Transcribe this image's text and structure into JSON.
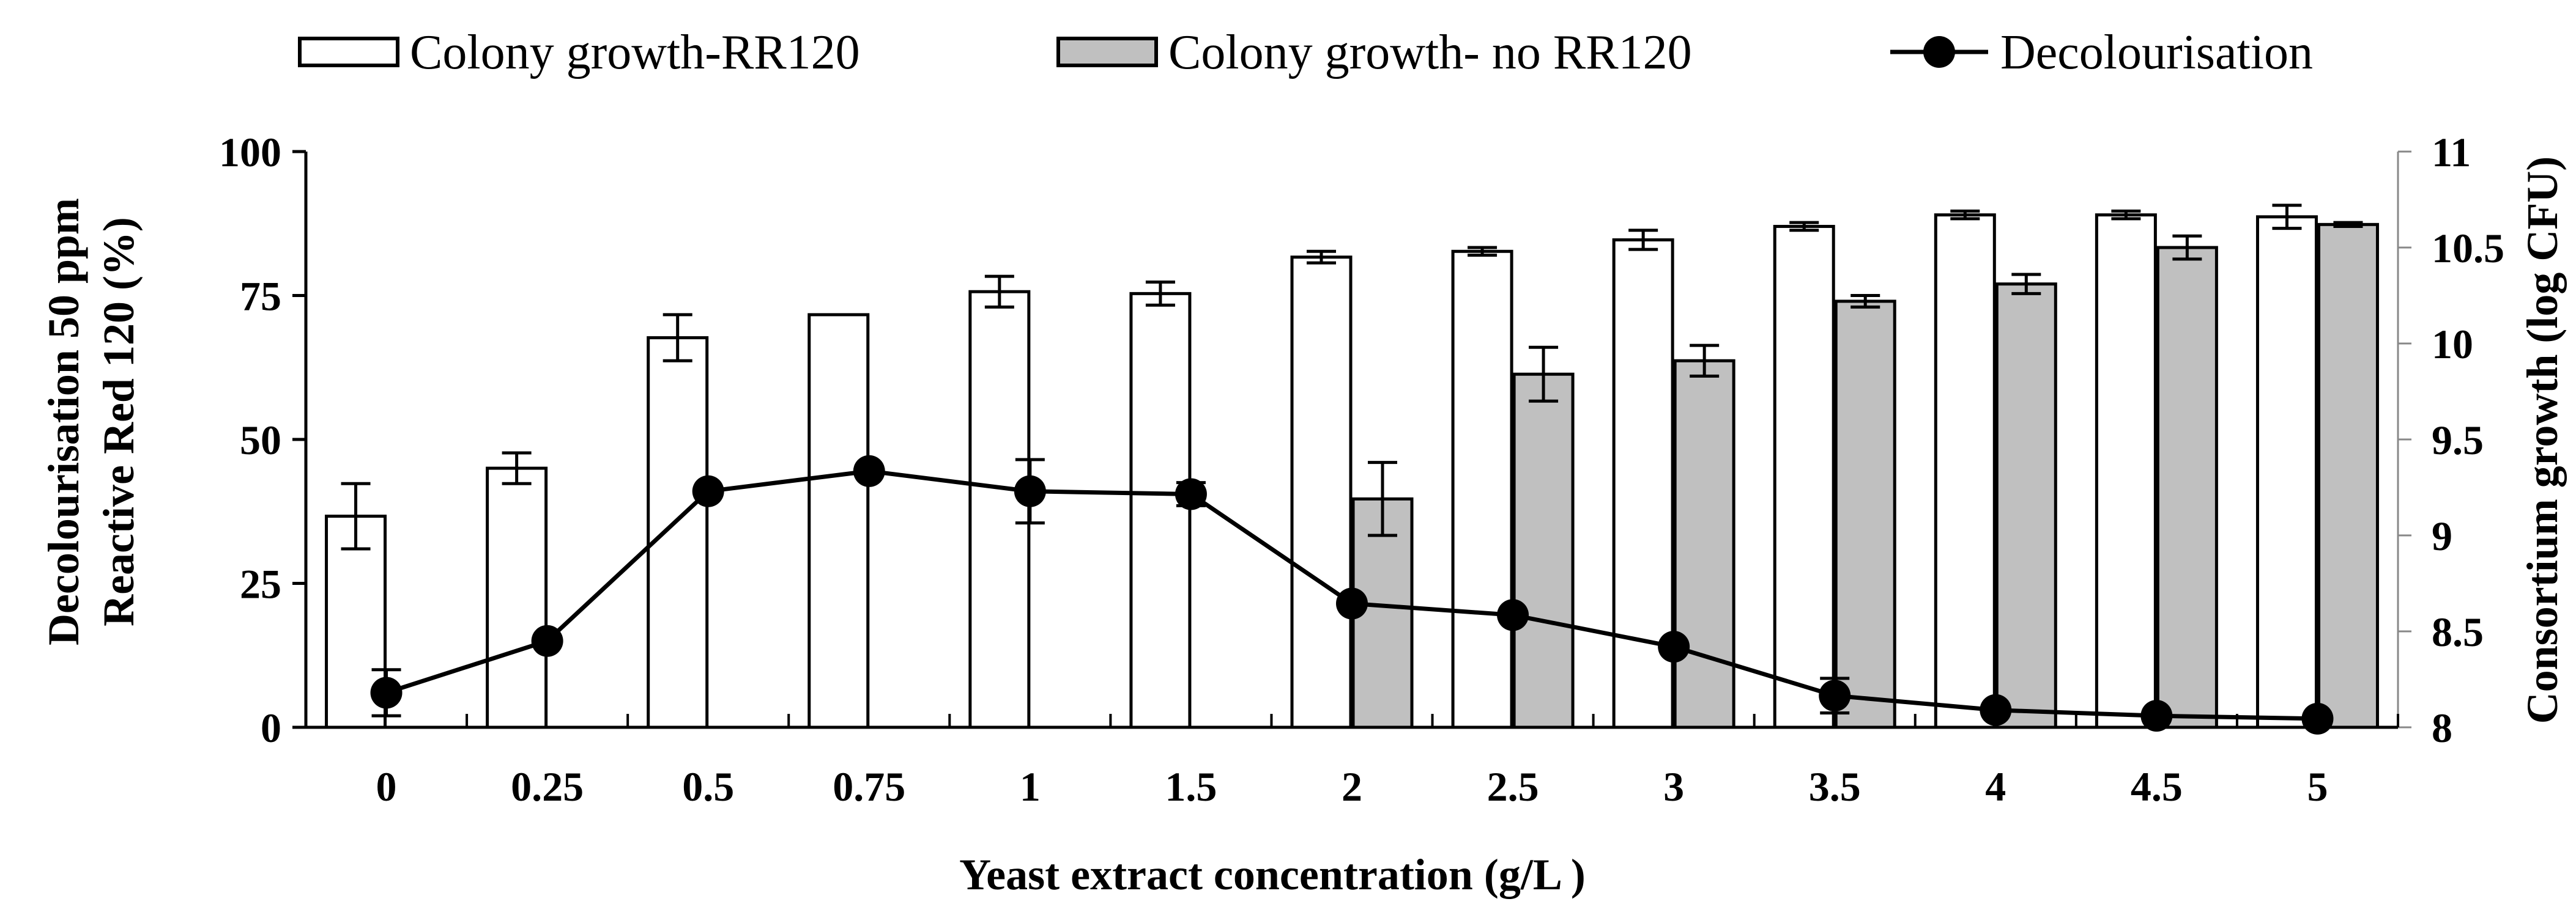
{
  "chart_data": {
    "type": "bar",
    "categories": [
      "0",
      "0.25",
      "0.5",
      "0.75",
      "1",
      "1.5",
      "2",
      "2.5",
      "3",
      "3.5",
      "4",
      "4.5",
      "5"
    ],
    "xlabel": "Yeast extract concentration (g/L )",
    "ylabel_left": [
      "Decolourisation 50 ppm",
      "Reactive Red 120 (%)"
    ],
    "ylabel_right": "Consortium growth (log CFU)",
    "ylim_left": [
      0,
      100
    ],
    "yticks_left": [
      "0",
      "25",
      "50",
      "75",
      "100"
    ],
    "ylim_right": [
      8,
      11
    ],
    "yticks_right": [
      "8",
      "8.5",
      "9",
      "9.5",
      "10",
      "10.5",
      "11"
    ],
    "legend_position": "top",
    "series": [
      {
        "name": "Colony growth-RR120",
        "kind": "bar",
        "axis": "right",
        "fill": "#ffffff",
        "values": [
          9.1,
          9.35,
          10.03,
          10.15,
          10.27,
          10.26,
          10.45,
          10.48,
          10.54,
          10.61,
          10.67,
          10.67,
          10.66
        ],
        "errors": [
          0.17,
          0.08,
          0.12,
          null,
          0.08,
          0.06,
          0.03,
          0.02,
          0.05,
          0.02,
          0.02,
          0.02,
          0.06
        ]
      },
      {
        "name": "Colony growth- no RR120",
        "kind": "bar",
        "axis": "right",
        "fill": "#c0c0c0",
        "values": [
          null,
          null,
          null,
          null,
          null,
          null,
          9.19,
          9.84,
          9.91,
          10.22,
          10.31,
          10.5,
          10.62
        ],
        "errors": [
          null,
          null,
          null,
          null,
          null,
          null,
          0.19,
          0.14,
          0.08,
          0.03,
          0.05,
          0.06,
          0.01
        ]
      },
      {
        "name": "Decolourisation",
        "kind": "line",
        "axis": "left",
        "color": "#000000",
        "values": [
          6,
          15,
          41,
          44.5,
          41,
          40.5,
          21.5,
          19.5,
          14,
          5.5,
          3,
          2,
          1.5
        ],
        "errors": [
          4,
          null,
          null,
          null,
          5.5,
          2,
          null,
          null,
          null,
          3,
          null,
          null,
          null
        ]
      }
    ]
  }
}
